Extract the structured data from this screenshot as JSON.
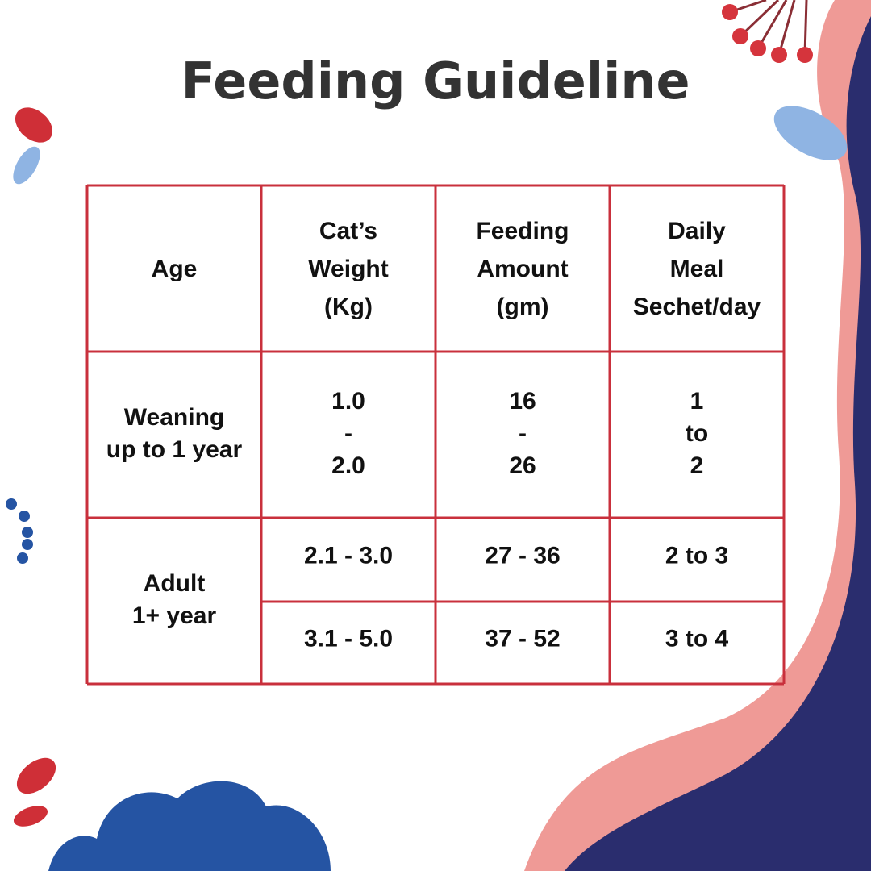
{
  "title": "Feeding Guideline",
  "table": {
    "header": [
      [
        "Age"
      ],
      [
        "Cat’s",
        "Weight",
        "(Kg)"
      ],
      [
        "Feeding",
        "Amount",
        "(gm)"
      ],
      [
        "Daily",
        "Meal",
        "Sechet/day"
      ]
    ],
    "groups": [
      {
        "age": [
          "Weaning",
          "up to 1 year"
        ],
        "rows": [
          [
            [
              "1.0",
              "-",
              "2.0"
            ],
            [
              "16",
              "-",
              "26"
            ],
            [
              "1",
              "to",
              "2"
            ]
          ]
        ]
      },
      {
        "age": [
          "Adult",
          "1+ year"
        ],
        "rows": [
          [
            [
              "2.1 - 3.0"
            ],
            [
              "27 - 36"
            ],
            [
              "2 to 3"
            ]
          ],
          [
            [
              "3.1 - 5.0"
            ],
            [
              "37 - 52"
            ],
            [
              "3 to 4"
            ]
          ]
        ]
      }
    ]
  }
}
